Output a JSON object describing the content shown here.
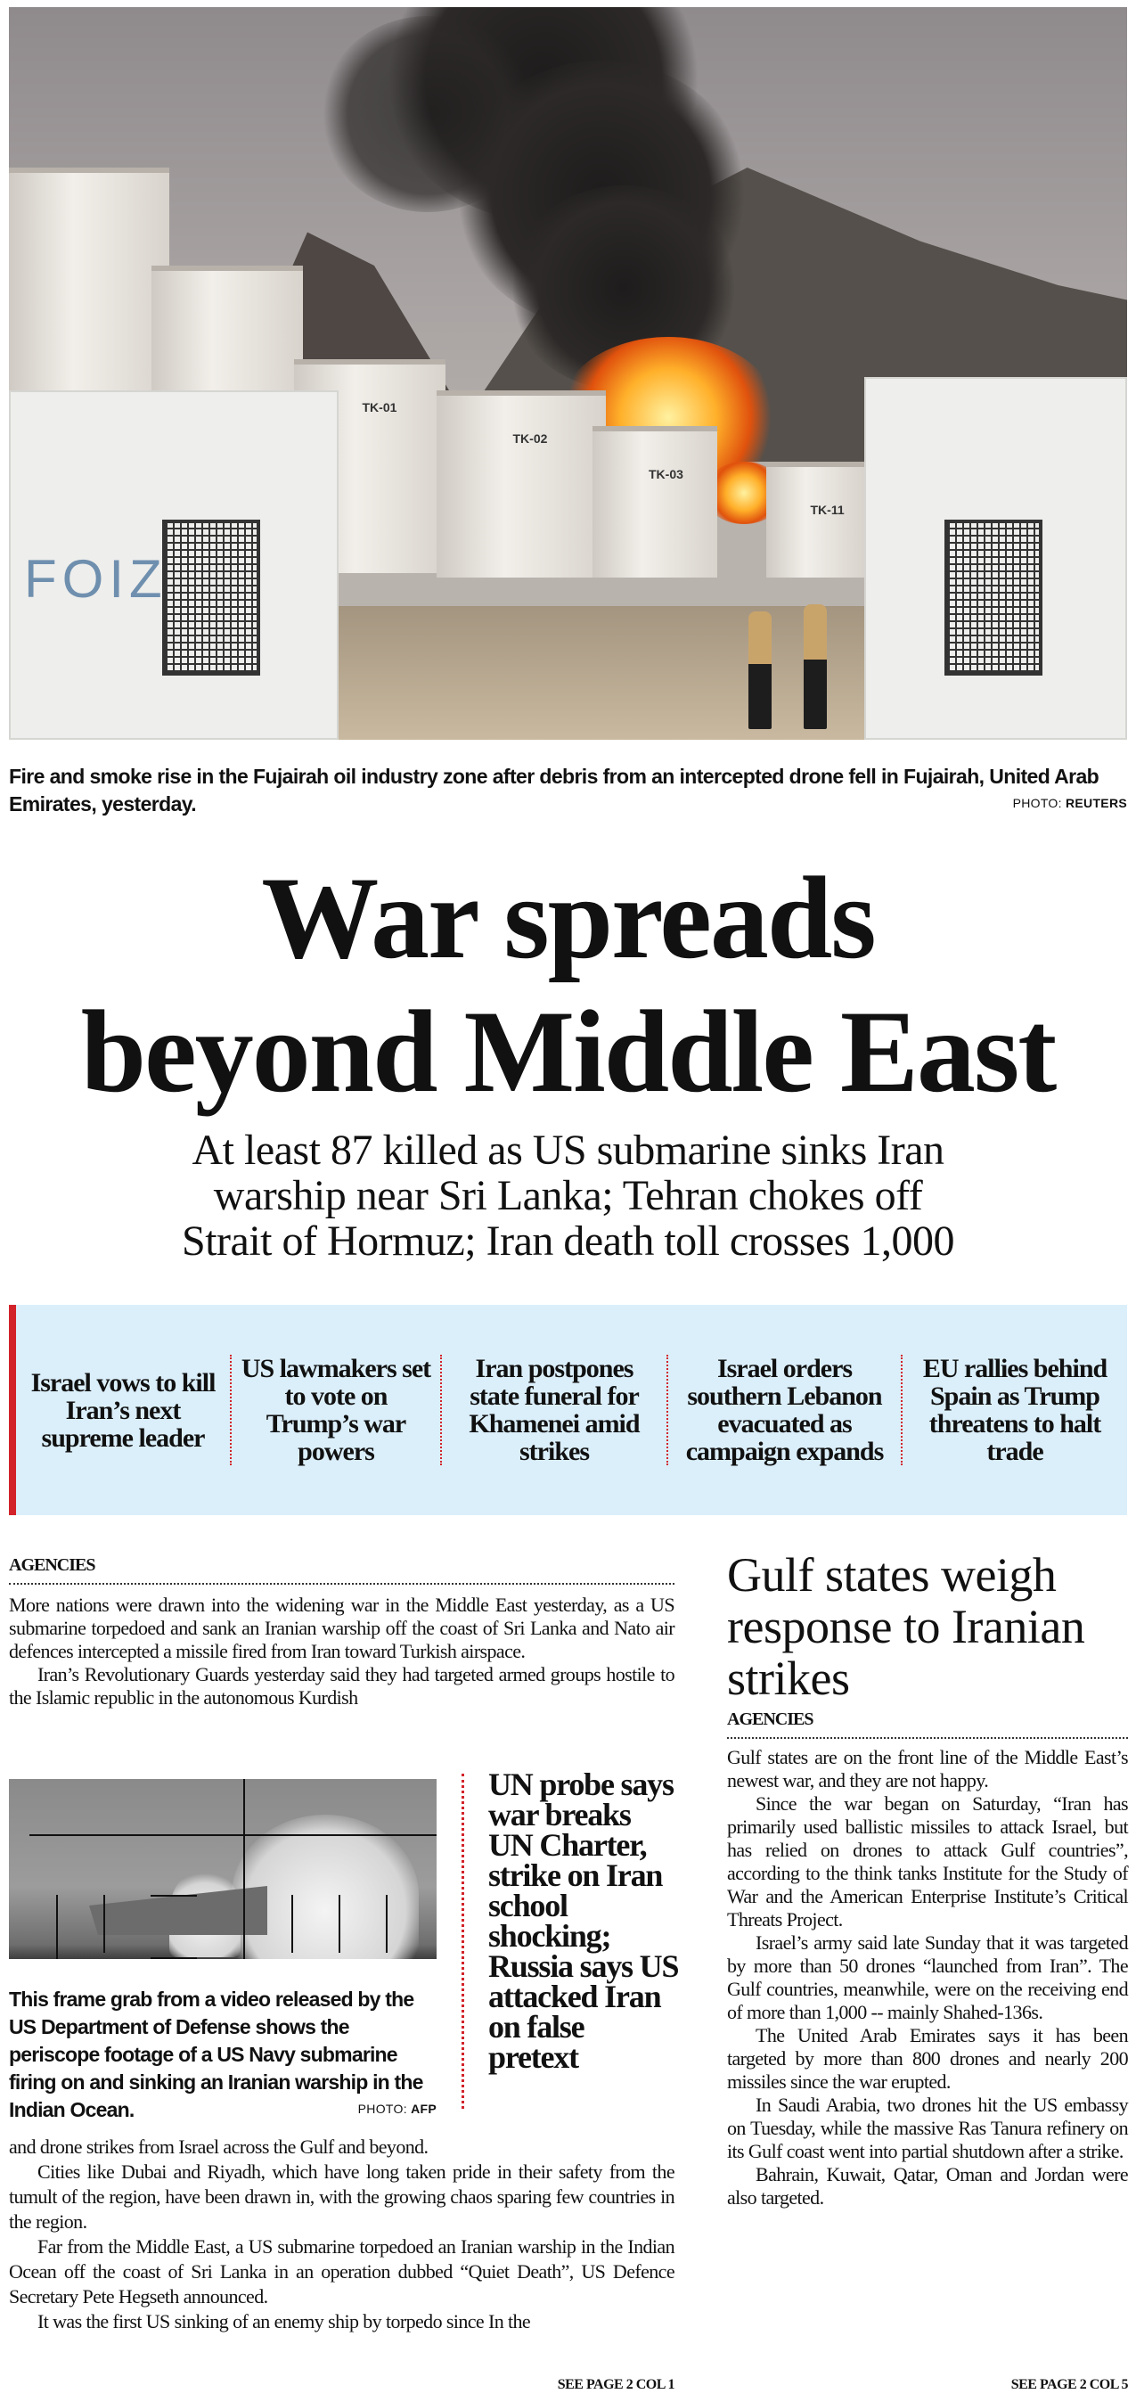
{
  "lead_photo": {
    "tank_labels": [
      "TK-01",
      "TK-02",
      "TK-03",
      "TK-11"
    ],
    "wall_lettering": "FOIZ",
    "caption": "Fire and smoke rise in the Fujairah oil industry zone after debris from an intercepted drone fell in Fujairah, United Arab Emirates, yesterday.",
    "credit_prefix": "PHOTO:",
    "credit_source": "REUTERS"
  },
  "headline": {
    "line1": "War spreads",
    "line2": "beyond Middle East"
  },
  "subhead": {
    "line1": "At least 87 killed as US submarine sinks Iran",
    "line2": "warship near Sri Lanka; Tehran chokes off",
    "line3": "Strait of Hormuz; Iran death toll crosses 1,000"
  },
  "teasers": [
    "Israel vows to kill Iran’s next supreme leader",
    "US lawmakers set to vote on Trump’s war powers",
    "Iran postpones state funeral for Khamenei amid strikes",
    "Israel orders southern Lebanon evacuated as campaign expands",
    "EU rallies behind Spain as Trump threatens to halt trade"
  ],
  "colors": {
    "accent_red": "#d2232a",
    "teaser_bg": "#dbeffa"
  },
  "main_story": {
    "byline": "AGENCIES",
    "paragraphs_top": [
      "More nations were drawn into the widening war in the Middle East yesterday, as a US submarine torpedoed and sank an Iranian warship off the coast of Sri Lanka and Nato air defences intercepted a missile fired from Iran toward Turkish airspace.",
      "Iran’s Revolutionary Guards yesterday said they had targeted armed groups hostile to the Islamic republic in the autonomous Kurdish"
    ],
    "paragraphs_bottom": [
      "and drone strikes from Israel across the Gulf and beyond.",
      "Cities like Dubai and Riyadh, which have long taken pride in their safety from the tumult of the region, have been drawn in, with the growing chaos sparing few countries in the region.",
      "Far from the Middle East, a US submarine torpedoed an Iranian warship in the Indian Ocean off the coast of Sri Lanka in an operation dubbed “Quiet Death”, US Defence Secretary Pete Hegseth announced.",
      "It was the first US sinking of an enemy ship by torpedo since In the"
    ],
    "jump": "SEE PAGE 2 COL 1"
  },
  "inset_photo": {
    "caption": "This frame grab from a video released by the US Department of Defense shows the periscope footage of a US Navy submarine firing on and sinking an Iranian warship in the Indian Ocean.",
    "credit_prefix": "PHOTO:",
    "credit_source": "AFP"
  },
  "sidebar_headline": "UN probe says war breaks UN Charter, strike on Iran school shocking; Russia says US attacked Iran on false pretext",
  "second_story": {
    "headline": "Gulf states weigh response to Iranian strikes",
    "byline": "AGENCIES",
    "paragraphs": [
      "Gulf states are on the front line of the Middle East’s newest war, and they are not happy.",
      "Since the war began on Saturday, “Iran has primarily used ballistic missiles to attack Israel, but has relied on drones to attack Gulf countries”, according to the think tanks Institute for the Study of War and the American Enterprise Institute’s Critical Threats Project.",
      "Israel’s army said late Sunday that it was targeted by more than 50 drones “launched from Iran”. The Gulf countries, meanwhile, were on the receiving end of more than 1,000 -- mainly Shahed-136s.",
      "The United Arab Emirates says it has been targeted by more than 800 drones and nearly 200 missiles since the war erupted.",
      "In Saudi Arabia, two drones hit the US embassy on Tuesday, while the massive Ras Tanura refinery on its Gulf coast went into partial shutdown after a strike.",
      "Bahrain, Kuwait, Qatar, Oman and Jordan were also targeted."
    ],
    "jump": "SEE PAGE 2 COL 5"
  }
}
